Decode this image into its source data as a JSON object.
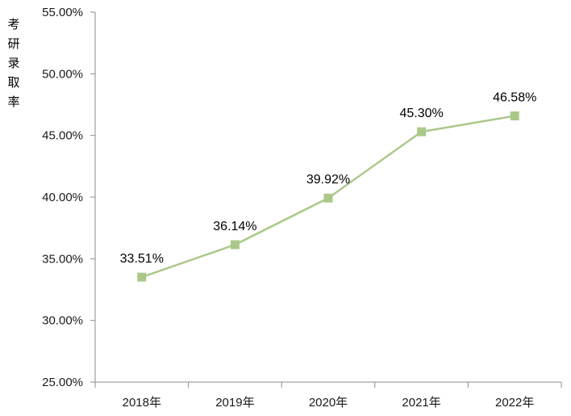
{
  "chart_data": {
    "type": "line",
    "title": "",
    "ylabel": "考研录取率",
    "xlabel": "",
    "categories": [
      "2018年",
      "2019年",
      "2020年",
      "2021年",
      "2022年"
    ],
    "series": [
      {
        "name": "考研录取率",
        "values": [
          33.51,
          36.14,
          39.92,
          45.3,
          46.58
        ]
      }
    ],
    "data_labels": [
      "33.51%",
      "36.14%",
      "39.92%",
      "45.30%",
      "46.58%"
    ],
    "y_ticks": [
      "55.00%",
      "50.00%",
      "45.00%",
      "40.00%",
      "35.00%",
      "30.00%",
      "25.00%"
    ],
    "ylim": [
      25,
      55
    ],
    "y_step": 5,
    "grid": false,
    "legend": "none",
    "marker": "square",
    "colors": {
      "line": "#ABC88A",
      "marker": "#ABC88A",
      "axis": "#8C8C8C",
      "tick_text": "#1A1A1A",
      "data_label_text": "#000000",
      "background": "#FFFFFF"
    }
  }
}
